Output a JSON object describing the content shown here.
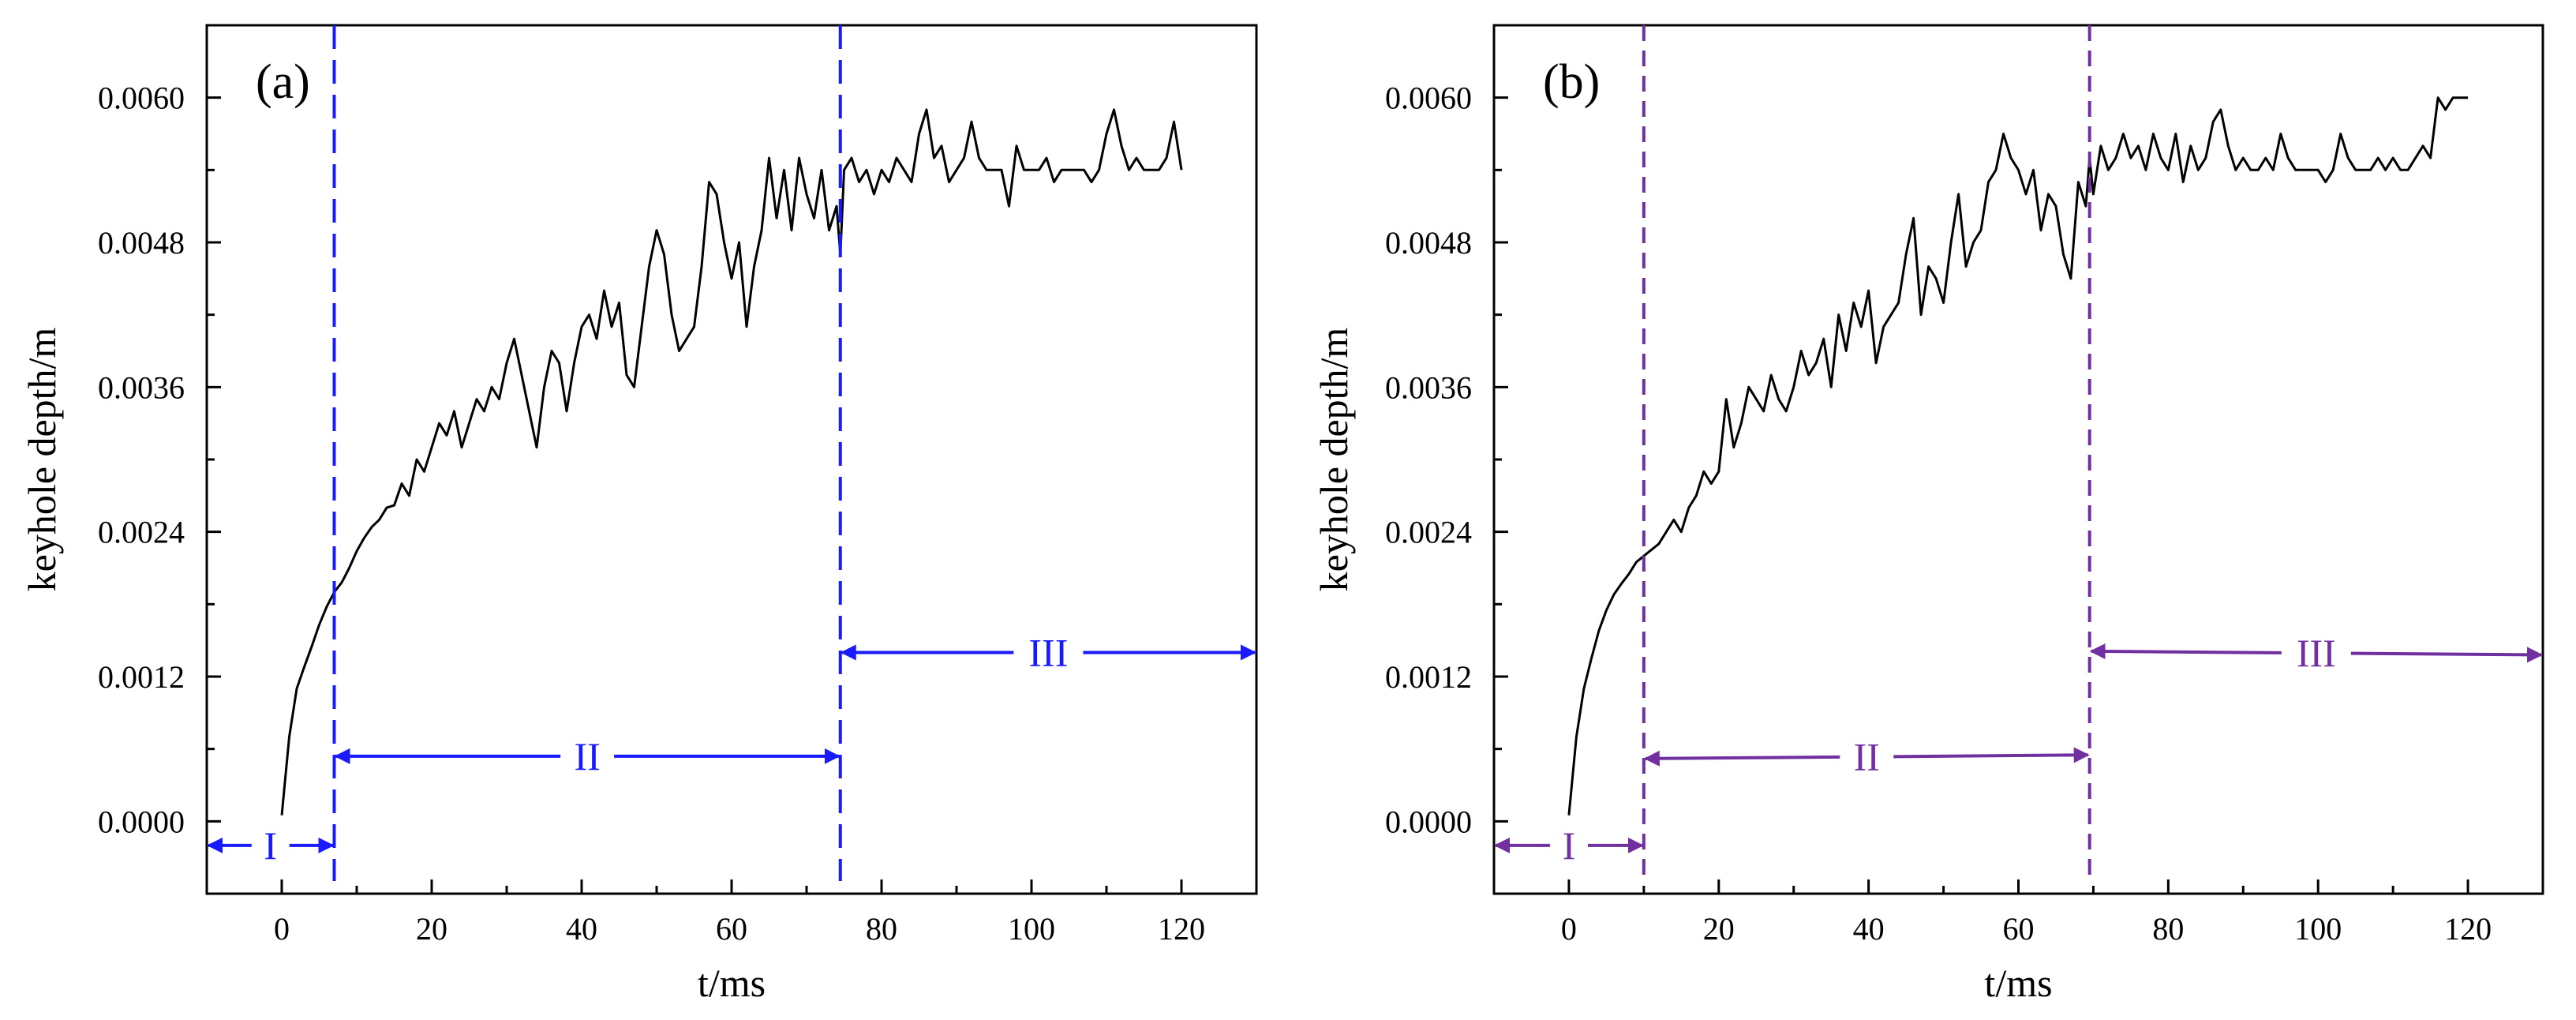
{
  "figure": {
    "panels": [
      "a",
      "b"
    ]
  },
  "colors": {
    "a_accent": "#1a1aff",
    "b_accent": "#7030a0",
    "line": "#000000"
  },
  "chart_data": [
    {
      "type": "line",
      "panel_label": "(a)",
      "xlabel": "t/ms",
      "ylabel": "keyhole depth/m",
      "xlim": [
        -10,
        130
      ],
      "ylim": [
        -0.0006,
        0.0066
      ],
      "x_ticks": [
        0,
        20,
        40,
        60,
        80,
        100,
        120
      ],
      "x_tick_labels": [
        "0",
        "20",
        "40",
        "60",
        "80",
        "100",
        "120"
      ],
      "y_ticks": [
        0.0,
        0.0012,
        0.0024,
        0.0036,
        0.0048,
        0.006
      ],
      "y_tick_labels": [
        "0.0000",
        "0.0012",
        "0.0024",
        "0.0036",
        "0.0048",
        "0.0060"
      ],
      "boundaries": [
        7,
        74.5
      ],
      "regions": [
        {
          "label": "I",
          "x_start": -10,
          "x_end": 7,
          "y": -0.0002
        },
        {
          "label": "II",
          "x_start": 7,
          "x_end": 74.5,
          "y": 0.00054
        },
        {
          "label": "III",
          "x_start": 74.5,
          "x_end": 130,
          "y": 0.0014
        }
      ],
      "series": [
        {
          "name": "keyhole depth",
          "x": [
            0,
            1,
            2,
            3,
            4,
            5,
            6,
            7,
            8,
            9,
            10,
            11,
            12,
            13,
            14,
            15,
            16,
            17,
            18,
            19,
            20,
            21,
            22,
            23,
            24,
            25,
            26,
            27,
            28,
            29,
            30,
            31,
            32,
            33,
            34,
            35,
            36,
            37,
            38,
            39,
            40,
            41,
            42,
            43,
            44,
            45,
            46,
            47,
            48,
            49,
            50,
            51,
            52,
            53,
            54,
            55,
            56,
            57,
            58,
            59,
            60,
            61,
            62,
            63,
            64,
            65,
            66,
            67,
            68,
            69,
            70,
            71,
            72,
            73,
            74,
            74.5,
            75,
            76,
            77,
            78,
            79,
            80,
            81,
            82,
            83,
            84,
            85,
            86,
            87,
            88,
            89,
            90,
            91,
            92,
            93,
            94,
            95,
            96,
            97,
            98,
            99,
            100,
            101,
            102,
            103,
            104,
            105,
            106,
            107,
            108,
            109,
            110,
            111,
            112,
            113,
            114,
            115,
            116,
            117,
            118,
            119,
            120
          ],
          "y": [
            5e-05,
            0.0007,
            0.0011,
            0.00128,
            0.00145,
            0.00163,
            0.00178,
            0.0019,
            0.00198,
            0.0021,
            0.00224,
            0.00235,
            0.00244,
            0.0025,
            0.0026,
            0.00262,
            0.0028,
            0.0027,
            0.003,
            0.0029,
            0.0031,
            0.0033,
            0.0032,
            0.0034,
            0.0031,
            0.0033,
            0.0035,
            0.0034,
            0.0036,
            0.0035,
            0.0038,
            0.004,
            0.0037,
            0.0034,
            0.0031,
            0.0036,
            0.0039,
            0.0038,
            0.0034,
            0.0038,
            0.0041,
            0.0042,
            0.004,
            0.0044,
            0.0041,
            0.0043,
            0.0037,
            0.0036,
            0.0041,
            0.0046,
            0.0049,
            0.0047,
            0.0042,
            0.0039,
            0.004,
            0.0041,
            0.0046,
            0.0053,
            0.0052,
            0.0048,
            0.0045,
            0.0048,
            0.0041,
            0.0046,
            0.0049,
            0.0055,
            0.005,
            0.0054,
            0.0049,
            0.0055,
            0.0052,
            0.005,
            0.0054,
            0.0049,
            0.0051,
            0.0047,
            0.0054,
            0.0055,
            0.0053,
            0.0054,
            0.0052,
            0.0054,
            0.0053,
            0.0055,
            0.0054,
            0.0053,
            0.0057,
            0.0059,
            0.0055,
            0.0056,
            0.0053,
            0.0054,
            0.0055,
            0.0058,
            0.0055,
            0.0054,
            0.0054,
            0.0054,
            0.0051,
            0.0056,
            0.0054,
            0.0054,
            0.0054,
            0.0055,
            0.0053,
            0.0054,
            0.0054,
            0.0054,
            0.0054,
            0.0053,
            0.0054,
            0.0057,
            0.0059,
            0.0056,
            0.0054,
            0.0055,
            0.0054,
            0.0054,
            0.0054,
            0.0055,
            0.0058,
            0.0054
          ]
        }
      ]
    },
    {
      "type": "line",
      "panel_label": "(b)",
      "xlabel": "t/ms",
      "ylabel": "keyhole depth/m",
      "xlim": [
        -10,
        130
      ],
      "ylim": [
        -0.0006,
        0.0066
      ],
      "x_ticks": [
        0,
        20,
        40,
        60,
        80,
        100,
        120
      ],
      "x_tick_labels": [
        "0",
        "20",
        "40",
        "60",
        "80",
        "100",
        "120"
      ],
      "y_ticks": [
        0.0,
        0.0012,
        0.0024,
        0.0036,
        0.0048,
        0.006
      ],
      "y_tick_labels": [
        "0.0000",
        "0.0012",
        "0.0024",
        "0.0036",
        "0.0048",
        "0.0060"
      ],
      "boundaries": [
        10,
        69.5
      ],
      "regions": [
        {
          "label": "I",
          "x_start": -10,
          "x_end": 10,
          "y": -0.0002
        },
        {
          "label": "II",
          "x_start": 10,
          "x_end": 69.5,
          "y": 0.00052,
          "y_end": 0.00055
        },
        {
          "label": "III",
          "x_start": 69.5,
          "x_end": 130,
          "y": 0.00141,
          "y_end": 0.00138
        }
      ],
      "series": [
        {
          "name": "keyhole depth",
          "x": [
            0,
            1,
            2,
            3,
            4,
            5,
            6,
            7,
            8,
            9,
            10,
            11,
            12,
            13,
            14,
            15,
            16,
            17,
            18,
            19,
            20,
            21,
            22,
            23,
            24,
            25,
            26,
            27,
            28,
            29,
            30,
            31,
            32,
            33,
            34,
            35,
            36,
            37,
            38,
            39,
            40,
            41,
            42,
            43,
            44,
            45,
            46,
            47,
            48,
            49,
            50,
            51,
            52,
            53,
            54,
            55,
            56,
            57,
            58,
            59,
            60,
            61,
            62,
            63,
            64,
            65,
            66,
            67,
            68,
            69,
            69.5,
            70,
            71,
            72,
            73,
            74,
            75,
            76,
            77,
            78,
            79,
            80,
            81,
            82,
            83,
            84,
            85,
            86,
            87,
            88,
            89,
            90,
            91,
            92,
            93,
            94,
            95,
            96,
            97,
            98,
            99,
            100,
            101,
            102,
            103,
            104,
            105,
            106,
            107,
            108,
            109,
            110,
            111,
            112,
            113,
            114,
            115,
            116,
            117,
            118,
            119,
            120
          ],
          "y": [
            5e-05,
            0.0007,
            0.0011,
            0.00135,
            0.00158,
            0.00175,
            0.00188,
            0.00197,
            0.00205,
            0.00215,
            0.0022,
            0.00225,
            0.0023,
            0.0024,
            0.0025,
            0.0024,
            0.0026,
            0.0027,
            0.0029,
            0.0028,
            0.0029,
            0.0035,
            0.0031,
            0.0033,
            0.0036,
            0.0035,
            0.0034,
            0.0037,
            0.0035,
            0.0034,
            0.0036,
            0.0039,
            0.0037,
            0.0038,
            0.004,
            0.0036,
            0.0042,
            0.0039,
            0.0043,
            0.0041,
            0.0044,
            0.0038,
            0.0041,
            0.0042,
            0.0043,
            0.0047,
            0.005,
            0.0042,
            0.0046,
            0.0045,
            0.0043,
            0.0048,
            0.0052,
            0.0046,
            0.0048,
            0.0049,
            0.0053,
            0.0054,
            0.0057,
            0.0055,
            0.0054,
            0.0052,
            0.0054,
            0.0049,
            0.0052,
            0.0051,
            0.0047,
            0.0045,
            0.0053,
            0.0051,
            0.0055,
            0.0052,
            0.0056,
            0.0054,
            0.0055,
            0.0057,
            0.0055,
            0.0056,
            0.0054,
            0.0057,
            0.0055,
            0.0054,
            0.0057,
            0.0053,
            0.0056,
            0.0054,
            0.0055,
            0.0058,
            0.0059,
            0.0056,
            0.0054,
            0.0055,
            0.0054,
            0.0054,
            0.0055,
            0.0054,
            0.0057,
            0.0055,
            0.0054,
            0.0054,
            0.0054,
            0.0054,
            0.0053,
            0.0054,
            0.0057,
            0.0055,
            0.0054,
            0.0054,
            0.0054,
            0.0055,
            0.0054,
            0.0055,
            0.0054,
            0.0054,
            0.0055,
            0.0056,
            0.0055,
            0.006,
            0.0059,
            0.006,
            0.006,
            0.006
          ]
        }
      ]
    }
  ]
}
